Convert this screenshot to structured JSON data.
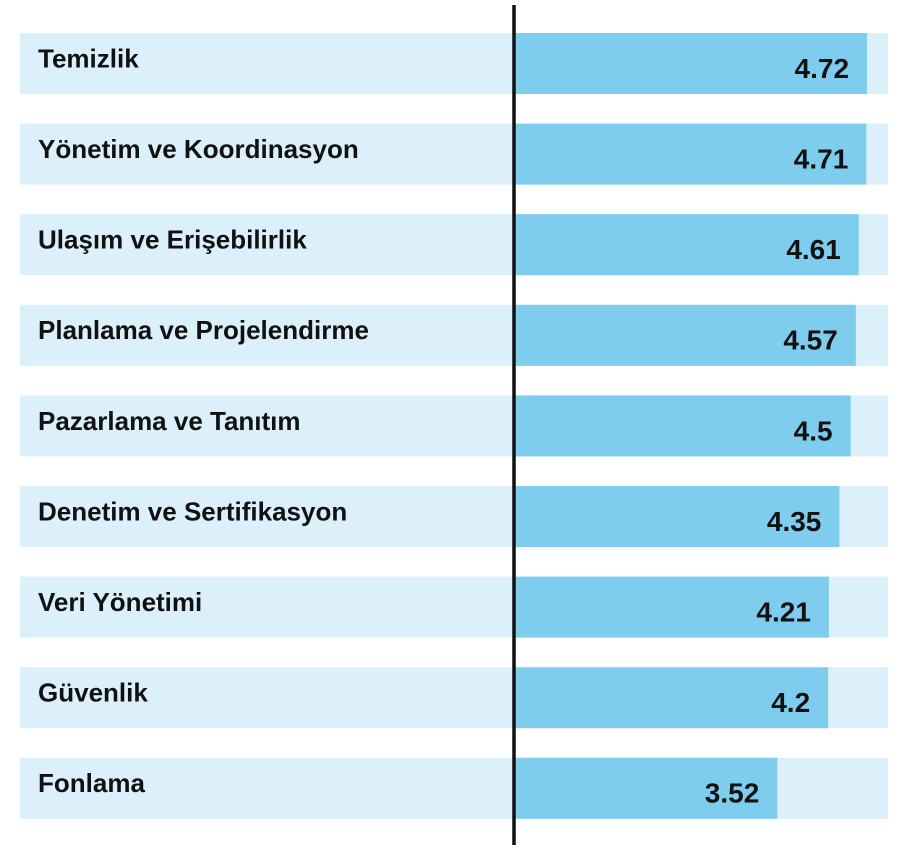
{
  "chart_data": {
    "type": "barh",
    "categories": [
      "Temizlik",
      "Yönetim ve Koordinasyon",
      "Ulaşım ve Erişebilirlik",
      "Planlama ve Projelendirme",
      "Pazarlama ve Tanıtım",
      "Denetim ve Sertifikasyon",
      "Veri Yönetimi",
      "Güvenlik",
      "Fonlama"
    ],
    "values": [
      4.72,
      4.71,
      4.61,
      4.57,
      4.5,
      4.35,
      4.21,
      4.2,
      3.52
    ],
    "color": "#7fcdee",
    "track_color": "#dcf0fb",
    "xlim": [
      0,
      5
    ]
  }
}
